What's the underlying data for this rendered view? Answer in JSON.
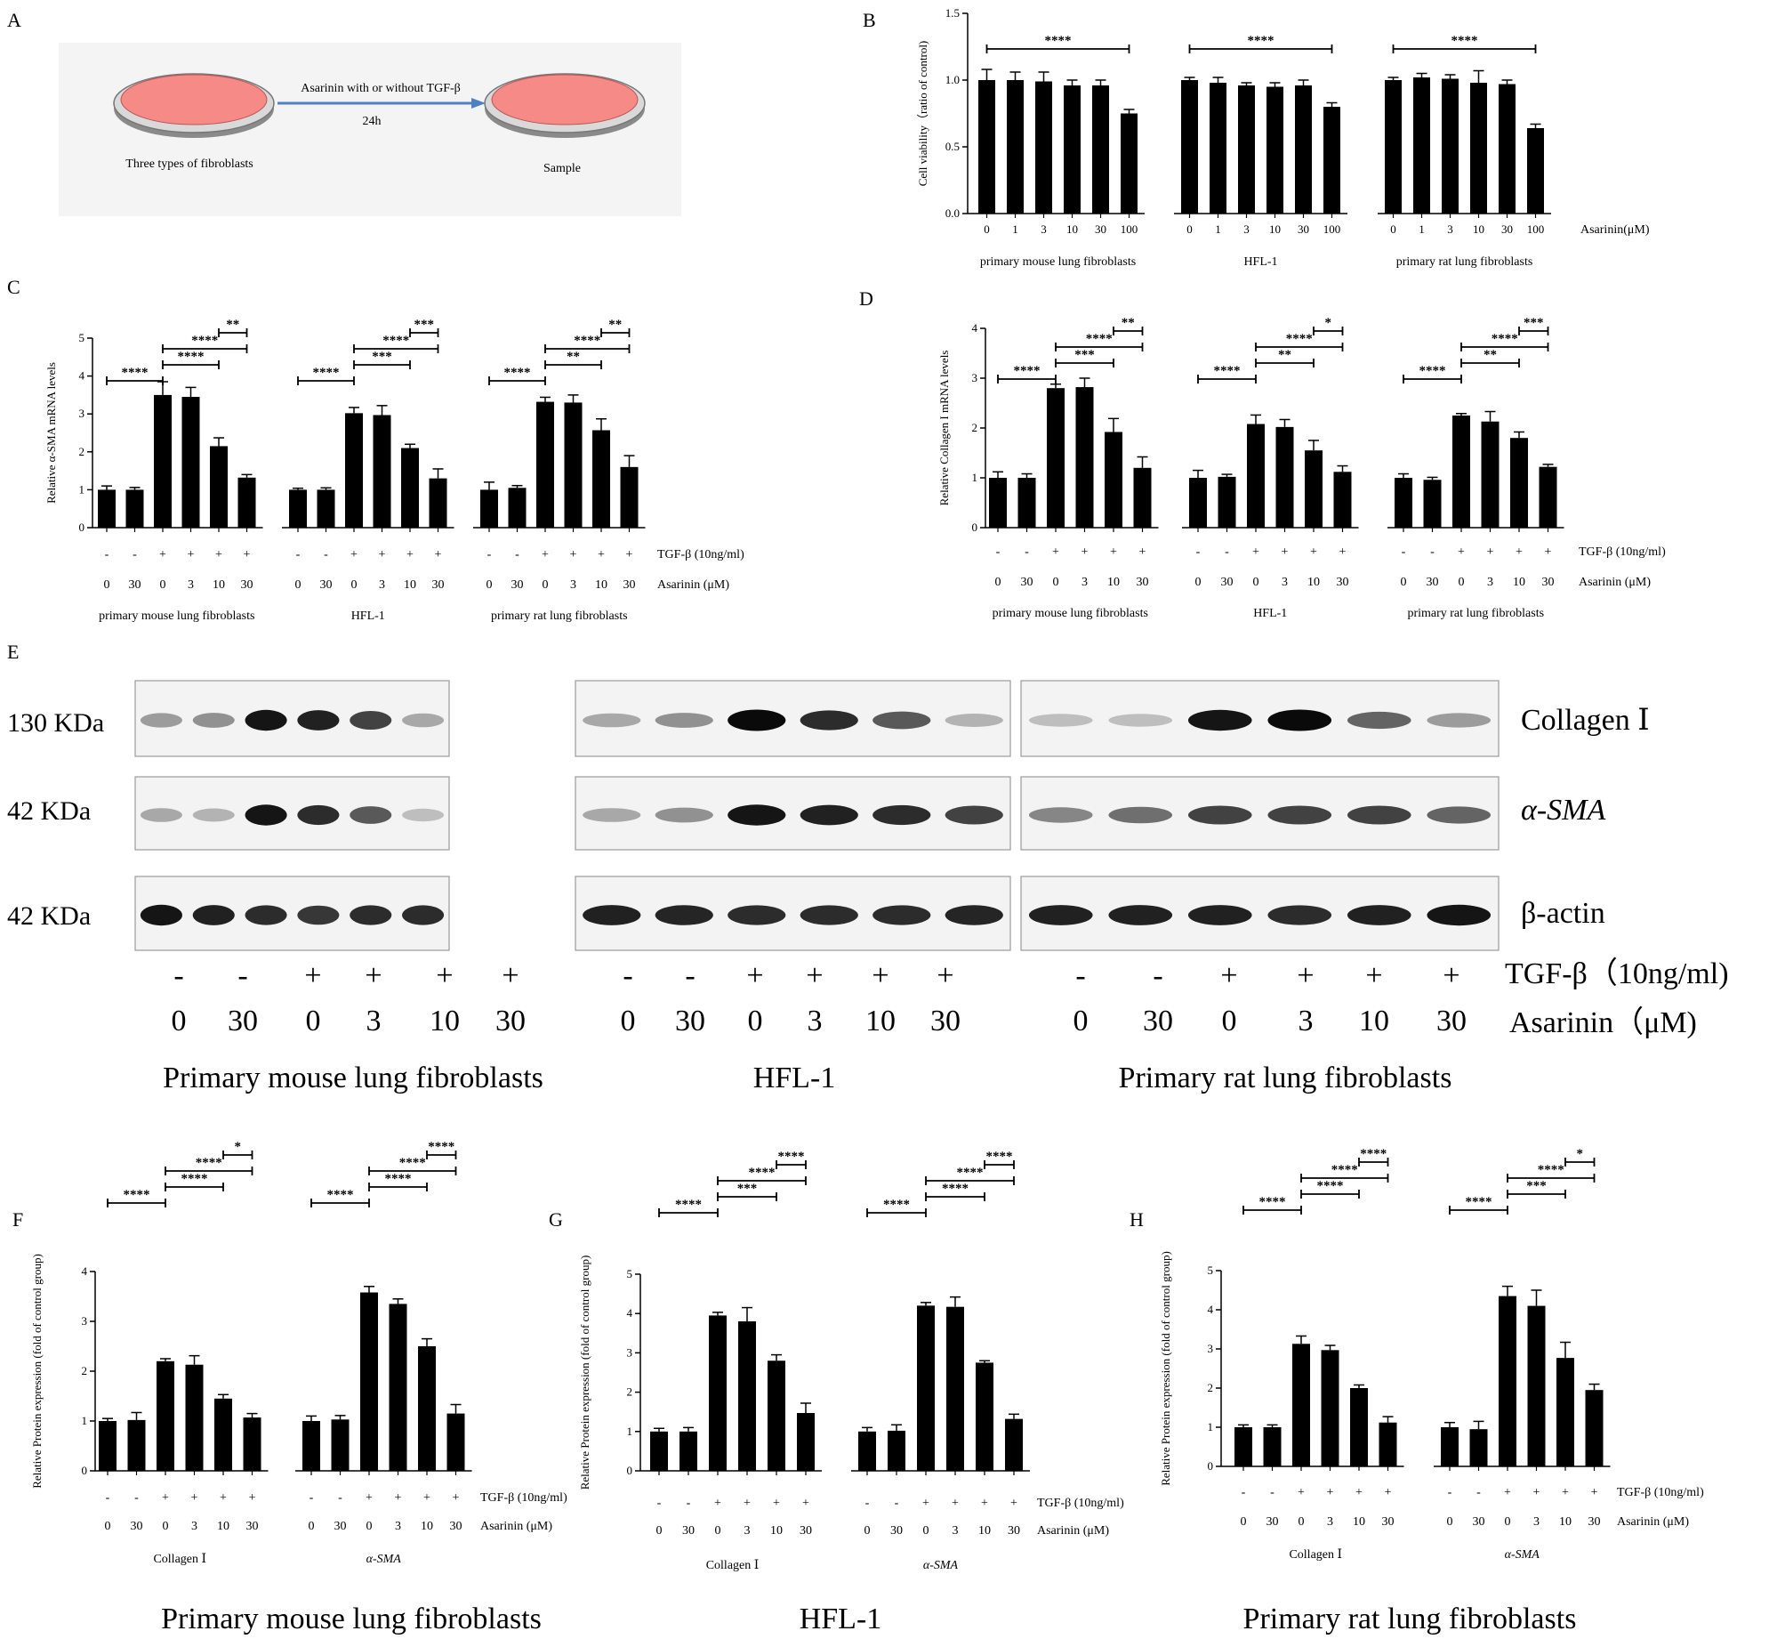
{
  "colors": {
    "bar": "#000000",
    "dish_fill": "#f58a86",
    "dish_rim": "#8a8a8a",
    "arrow": "#4f80c2",
    "panel_a_bg": "#f4f4f4"
  },
  "panel_a": {
    "label": "A",
    "arrow_text": "Asarinin with or without TGF-β",
    "time_text": "24h",
    "left_caption": "Three types of fibroblasts",
    "right_caption": "Sample"
  },
  "common": {
    "tgf_row_label": "TGF-β (10ng/ml)",
    "asarinin_row_label": "Asarinin (μM)",
    "minus": "-",
    "plus": "+",
    "doses_treatment": [
      "0",
      "30",
      "0",
      "3",
      "10",
      "30"
    ],
    "tgf_signs": [
      "-",
      "-",
      "+",
      "+",
      "+",
      "+"
    ],
    "cell_groups": [
      "primary mouse lung fibroblasts",
      "HFL-1",
      "primary rat lung fibroblasts"
    ]
  },
  "chart_data": [
    {
      "panel": "B",
      "type": "bar",
      "ylabel": "Cell viability（ratio of control)",
      "ylim": [
        0,
        1.5
      ],
      "yticks": [
        "0.0",
        "0.5",
        "1.0",
        "1.5"
      ],
      "categories": [
        "0",
        "1",
        "3",
        "10",
        "30",
        "100"
      ],
      "xrow_label": "Asarinin(μM)",
      "groups": [
        {
          "name": "primary mouse lung fibroblasts",
          "values": [
            1.0,
            1.0,
            0.99,
            0.96,
            0.96,
            0.75
          ],
          "errors": [
            0.08,
            0.06,
            0.07,
            0.04,
            0.04,
            0.03
          ]
        },
        {
          "name": "HFL-1",
          "values": [
            1.0,
            0.98,
            0.96,
            0.95,
            0.96,
            0.8
          ],
          "errors": [
            0.02,
            0.04,
            0.02,
            0.03,
            0.04,
            0.03
          ]
        },
        {
          "name": "primary rat lung fibroblasts",
          "values": [
            1.0,
            1.02,
            1.01,
            0.98,
            0.97,
            0.64
          ],
          "errors": [
            0.02,
            0.03,
            0.03,
            0.09,
            0.03,
            0.03
          ]
        }
      ],
      "sig_brackets": [
        {
          "group": 0,
          "from": 0,
          "to": 5,
          "level": 0,
          "text": "****"
        },
        {
          "group": 1,
          "from": 0,
          "to": 5,
          "level": 0,
          "text": "****"
        },
        {
          "group": 2,
          "from": 0,
          "to": 5,
          "level": 0,
          "text": "****"
        }
      ]
    },
    {
      "panel": "C",
      "type": "bar",
      "ylabel": "Relative α-SMA mRNA levels",
      "ylim": [
        0,
        5
      ],
      "yticks": [
        "0",
        "1",
        "2",
        "3",
        "4",
        "5"
      ],
      "groups": [
        {
          "name": "primary mouse lung fibroblasts",
          "values": [
            1.0,
            1.0,
            3.5,
            3.45,
            2.15,
            1.32
          ],
          "errors": [
            0.1,
            0.06,
            0.35,
            0.25,
            0.22,
            0.08
          ]
        },
        {
          "name": "HFL-1",
          "values": [
            1.0,
            1.0,
            3.02,
            2.97,
            2.1,
            1.3
          ],
          "errors": [
            0.04,
            0.05,
            0.15,
            0.25,
            0.1,
            0.25
          ]
        },
        {
          "name": "primary rat lung fibroblasts",
          "values": [
            1.0,
            1.05,
            3.32,
            3.3,
            2.57,
            1.6
          ],
          "errors": [
            0.2,
            0.06,
            0.12,
            0.2,
            0.3,
            0.3
          ]
        }
      ],
      "sig_brackets": [
        {
          "group": 0,
          "from": 0,
          "to": 2,
          "level": 0,
          "text": "****"
        },
        {
          "group": 0,
          "from": 2,
          "to": 4,
          "level": 0,
          "text": "****"
        },
        {
          "group": 0,
          "from": 2,
          "to": 5,
          "level": 1,
          "text": "****"
        },
        {
          "group": 0,
          "from": 4,
          "to": 5,
          "level": 2,
          "text": "**"
        },
        {
          "group": 1,
          "from": 0,
          "to": 2,
          "level": 0,
          "text": "****"
        },
        {
          "group": 1,
          "from": 2,
          "to": 4,
          "level": 0,
          "text": "***"
        },
        {
          "group": 1,
          "from": 2,
          "to": 5,
          "level": 1,
          "text": "****"
        },
        {
          "group": 1,
          "from": 4,
          "to": 5,
          "level": 2,
          "text": "***"
        },
        {
          "group": 2,
          "from": 0,
          "to": 2,
          "level": 0,
          "text": "****"
        },
        {
          "group": 2,
          "from": 2,
          "to": 4,
          "level": 0,
          "text": "**"
        },
        {
          "group": 2,
          "from": 2,
          "to": 5,
          "level": 1,
          "text": "****"
        },
        {
          "group": 2,
          "from": 4,
          "to": 5,
          "level": 2,
          "text": "**"
        }
      ]
    },
    {
      "panel": "D",
      "type": "bar",
      "ylabel": "Relative Collagen I mRNA levels",
      "ylim": [
        0,
        4
      ],
      "yticks": [
        "0",
        "1",
        "2",
        "3",
        "4"
      ],
      "groups": [
        {
          "name": "primary mouse lung fibroblasts",
          "values": [
            1.0,
            1.0,
            2.8,
            2.82,
            1.92,
            1.2
          ],
          "errors": [
            0.12,
            0.08,
            0.08,
            0.18,
            0.27,
            0.22
          ]
        },
        {
          "name": "HFL-1",
          "values": [
            1.0,
            1.02,
            2.08,
            2.02,
            1.55,
            1.12
          ],
          "errors": [
            0.15,
            0.05,
            0.18,
            0.15,
            0.2,
            0.12
          ]
        },
        {
          "name": "primary rat lung fibroblasts",
          "values": [
            1.0,
            0.96,
            2.25,
            2.13,
            1.8,
            1.22
          ],
          "errors": [
            0.08,
            0.05,
            0.04,
            0.2,
            0.12,
            0.05
          ]
        }
      ],
      "sig_brackets": [
        {
          "group": 0,
          "from": 0,
          "to": 2,
          "level": 0,
          "text": "****"
        },
        {
          "group": 0,
          "from": 2,
          "to": 4,
          "level": 0,
          "text": "***"
        },
        {
          "group": 0,
          "from": 2,
          "to": 5,
          "level": 1,
          "text": "****"
        },
        {
          "group": 0,
          "from": 4,
          "to": 5,
          "level": 2,
          "text": "**"
        },
        {
          "group": 1,
          "from": 0,
          "to": 2,
          "level": 0,
          "text": "****"
        },
        {
          "group": 1,
          "from": 2,
          "to": 4,
          "level": 0,
          "text": "**"
        },
        {
          "group": 1,
          "from": 2,
          "to": 5,
          "level": 1,
          "text": "****"
        },
        {
          "group": 1,
          "from": 4,
          "to": 5,
          "level": 2,
          "text": "*"
        },
        {
          "group": 2,
          "from": 0,
          "to": 2,
          "level": 0,
          "text": "****"
        },
        {
          "group": 2,
          "from": 2,
          "to": 4,
          "level": 0,
          "text": "**"
        },
        {
          "group": 2,
          "from": 2,
          "to": 5,
          "level": 1,
          "text": "****"
        },
        {
          "group": 2,
          "from": 4,
          "to": 5,
          "level": 2,
          "text": "***"
        }
      ]
    },
    {
      "panel": "F",
      "type": "bar",
      "ylabel": "Relative Protein expression (fold of control group)",
      "ylim": [
        0,
        4
      ],
      "yticks": [
        "0",
        "1",
        "2",
        "3",
        "4"
      ],
      "title": "Primary mouse lung fibroblasts",
      "groups": [
        {
          "name": "Collagen Ⅰ",
          "values": [
            1.0,
            1.02,
            2.2,
            2.13,
            1.45,
            1.07
          ],
          "errors": [
            0.05,
            0.15,
            0.05,
            0.18,
            0.08,
            0.08
          ]
        },
        {
          "name": "α-SMA",
          "values": [
            1.0,
            1.03,
            3.58,
            3.35,
            2.5,
            1.15
          ],
          "errors": [
            0.1,
            0.08,
            0.12,
            0.1,
            0.15,
            0.18
          ]
        }
      ],
      "sig_brackets": [
        {
          "group": 0,
          "from": 0,
          "to": 2,
          "level": 0,
          "text": "****"
        },
        {
          "group": 0,
          "from": 2,
          "to": 4,
          "level": 0,
          "text": "****"
        },
        {
          "group": 0,
          "from": 2,
          "to": 5,
          "level": 1,
          "text": "****"
        },
        {
          "group": 0,
          "from": 4,
          "to": 5,
          "level": 2,
          "text": "*"
        },
        {
          "group": 1,
          "from": 0,
          "to": 2,
          "level": 0,
          "text": "****"
        },
        {
          "group": 1,
          "from": 2,
          "to": 4,
          "level": 0,
          "text": "****"
        },
        {
          "group": 1,
          "from": 2,
          "to": 5,
          "level": 1,
          "text": "****"
        },
        {
          "group": 1,
          "from": 4,
          "to": 5,
          "level": 2,
          "text": "****"
        }
      ]
    },
    {
      "panel": "G",
      "type": "bar",
      "ylabel": "Relative Protein expression (fold of control group)",
      "ylim": [
        0,
        5
      ],
      "yticks": [
        "0",
        "1",
        "2",
        "3",
        "4",
        "5"
      ],
      "title": "HFL-1",
      "groups": [
        {
          "name": "Collagen Ⅰ",
          "values": [
            1.0,
            1.0,
            3.95,
            3.8,
            2.8,
            1.47
          ],
          "errors": [
            0.08,
            0.1,
            0.08,
            0.35,
            0.15,
            0.25
          ]
        },
        {
          "name": "α-SMA",
          "values": [
            1.0,
            1.02,
            4.2,
            4.17,
            2.75,
            1.32
          ],
          "errors": [
            0.1,
            0.15,
            0.08,
            0.25,
            0.05,
            0.12
          ]
        }
      ],
      "sig_brackets": [
        {
          "group": 0,
          "from": 0,
          "to": 2,
          "level": 0,
          "text": "****"
        },
        {
          "group": 0,
          "from": 2,
          "to": 4,
          "level": 0,
          "text": "***"
        },
        {
          "group": 0,
          "from": 2,
          "to": 5,
          "level": 1,
          "text": "****"
        },
        {
          "group": 0,
          "from": 4,
          "to": 5,
          "level": 2,
          "text": "****"
        },
        {
          "group": 1,
          "from": 0,
          "to": 2,
          "level": 0,
          "text": "****"
        },
        {
          "group": 1,
          "from": 2,
          "to": 4,
          "level": 0,
          "text": "****"
        },
        {
          "group": 1,
          "from": 2,
          "to": 5,
          "level": 1,
          "text": "****"
        },
        {
          "group": 1,
          "from": 4,
          "to": 5,
          "level": 2,
          "text": "****"
        }
      ]
    },
    {
      "panel": "H",
      "type": "bar",
      "ylabel": "Relative Protein expression (fold of control group)",
      "ylim": [
        0,
        5
      ],
      "yticks": [
        "0",
        "1",
        "2",
        "3",
        "4",
        "5"
      ],
      "title": "Primary rat lung fibroblasts",
      "groups": [
        {
          "name": "Collagen Ⅰ",
          "values": [
            1.0,
            1.0,
            3.13,
            2.97,
            2.0,
            1.12
          ],
          "errors": [
            0.06,
            0.06,
            0.2,
            0.12,
            0.08,
            0.15
          ]
        },
        {
          "name": "α-SMA",
          "values": [
            1.0,
            0.95,
            4.35,
            4.1,
            2.77,
            1.95
          ],
          "errors": [
            0.12,
            0.2,
            0.25,
            0.4,
            0.4,
            0.15
          ]
        }
      ],
      "sig_brackets": [
        {
          "group": 0,
          "from": 0,
          "to": 2,
          "level": 0,
          "text": "****"
        },
        {
          "group": 0,
          "from": 2,
          "to": 4,
          "level": 0,
          "text": "****"
        },
        {
          "group": 0,
          "from": 2,
          "to": 5,
          "level": 1,
          "text": "****"
        },
        {
          "group": 0,
          "from": 4,
          "to": 5,
          "level": 2,
          "text": "****"
        },
        {
          "group": 1,
          "from": 0,
          "to": 2,
          "level": 0,
          "text": "****"
        },
        {
          "group": 1,
          "from": 2,
          "to": 4,
          "level": 0,
          "text": "***"
        },
        {
          "group": 1,
          "from": 2,
          "to": 5,
          "level": 1,
          "text": "****"
        },
        {
          "group": 1,
          "from": 4,
          "to": 5,
          "level": 2,
          "text": "*"
        }
      ]
    }
  ],
  "panel_e": {
    "label": "E",
    "row_markers": [
      "130 KDa",
      "42 KDa",
      "42 KDa"
    ],
    "proteins": [
      "Collagen Ⅰ",
      "α-SMA",
      "β-actin"
    ],
    "tgf_label": "TGF-β（10ng/ml)",
    "asarinin_label": "Asarinin（μM)",
    "group_titles": [
      "Primary mouse lung fibroblasts",
      "HFL-1",
      "Primary rat lung fibroblasts"
    ],
    "band_intensity": [
      [
        [
          0.35,
          0.4,
          0.95,
          0.9,
          0.75,
          0.3
        ],
        [
          0.3,
          0.4,
          1.0,
          0.85,
          0.65,
          0.25
        ],
        [
          0.2,
          0.2,
          0.95,
          1.0,
          0.6,
          0.35
        ]
      ],
      [
        [
          0.3,
          0.25,
          0.95,
          0.85,
          0.65,
          0.2
        ],
        [
          0.3,
          0.4,
          0.95,
          0.9,
          0.85,
          0.75
        ],
        [
          0.45,
          0.55,
          0.75,
          0.75,
          0.75,
          0.6
        ]
      ],
      [
        [
          0.95,
          0.9,
          0.85,
          0.8,
          0.85,
          0.85
        ],
        [
          0.9,
          0.88,
          0.85,
          0.85,
          0.85,
          0.88
        ],
        [
          0.9,
          0.9,
          0.9,
          0.85,
          0.9,
          0.95
        ]
      ]
    ]
  }
}
